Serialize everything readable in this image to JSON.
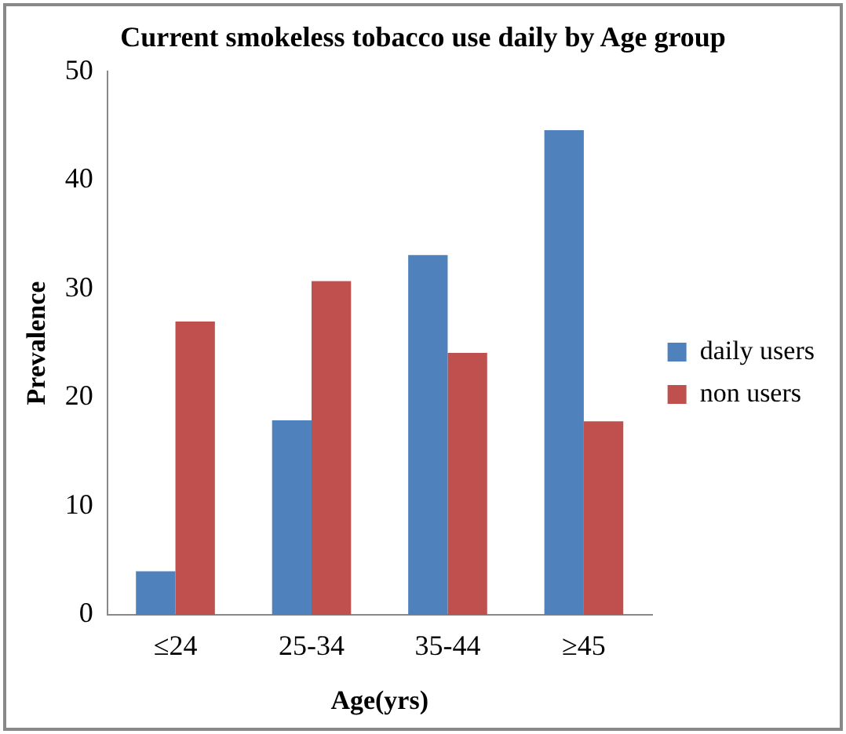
{
  "chart_data": {
    "type": "bar",
    "title": "Current smokeless tobacco use daily by Age group",
    "xlabel": "Age(yrs)",
    "ylabel": "Prevalence",
    "categories": [
      "≤24",
      "25-34",
      "35-44",
      "≥45"
    ],
    "series": [
      {
        "name": "daily users",
        "color": "#4f81bd",
        "values": [
          4.0,
          17.9,
          33.1,
          44.6
        ]
      },
      {
        "name": "non users",
        "color": "#c0504d",
        "values": [
          27.0,
          30.7,
          24.1,
          17.8
        ]
      }
    ],
    "ylim": [
      0,
      50
    ],
    "yticks": [
      0,
      10,
      20,
      30,
      40,
      50
    ],
    "grid": false,
    "legend": "right"
  }
}
